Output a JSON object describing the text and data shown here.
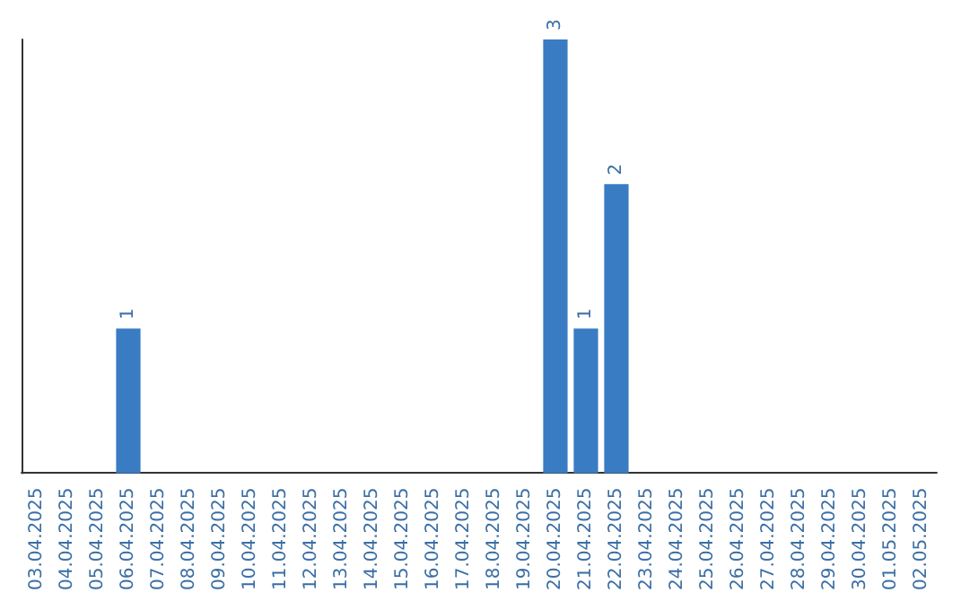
{
  "chart_data": {
    "type": "bar",
    "categories": [
      "03.04.2025",
      "04.04.2025",
      "05.04.2025",
      "06.04.2025",
      "07.04.2025",
      "08.04.2025",
      "09.04.2025",
      "10.04.2025",
      "11.04.2025",
      "12.04.2025",
      "13.04.2025",
      "14.04.2025",
      "15.04.2025",
      "16.04.2025",
      "17.04.2025",
      "18.04.2025",
      "19.04.2025",
      "20.04.2025",
      "21.04.2025",
      "22.04.2025",
      "23.04.2025",
      "24.04.2025",
      "25.04.2025",
      "26.04.2025",
      "27.04.2025",
      "28.04.2025",
      "29.04.2025",
      "30.04.2025",
      "01.05.2025",
      "02.05.2025"
    ],
    "values": [
      0,
      0,
      0,
      1,
      0,
      0,
      0,
      0,
      0,
      0,
      0,
      0,
      0,
      0,
      0,
      0,
      0,
      3,
      1,
      2,
      0,
      0,
      0,
      0,
      0,
      0,
      0,
      0,
      0,
      0
    ],
    "value_labels": [
      null,
      null,
      null,
      "1",
      null,
      null,
      null,
      null,
      null,
      null,
      null,
      null,
      null,
      null,
      null,
      null,
      null,
      "3",
      "1",
      "2",
      null,
      null,
      null,
      null,
      null,
      null,
      null,
      null,
      null,
      null
    ],
    "color": "#3a7cc3",
    "tick_labels": "x",
    "grid": false
  }
}
